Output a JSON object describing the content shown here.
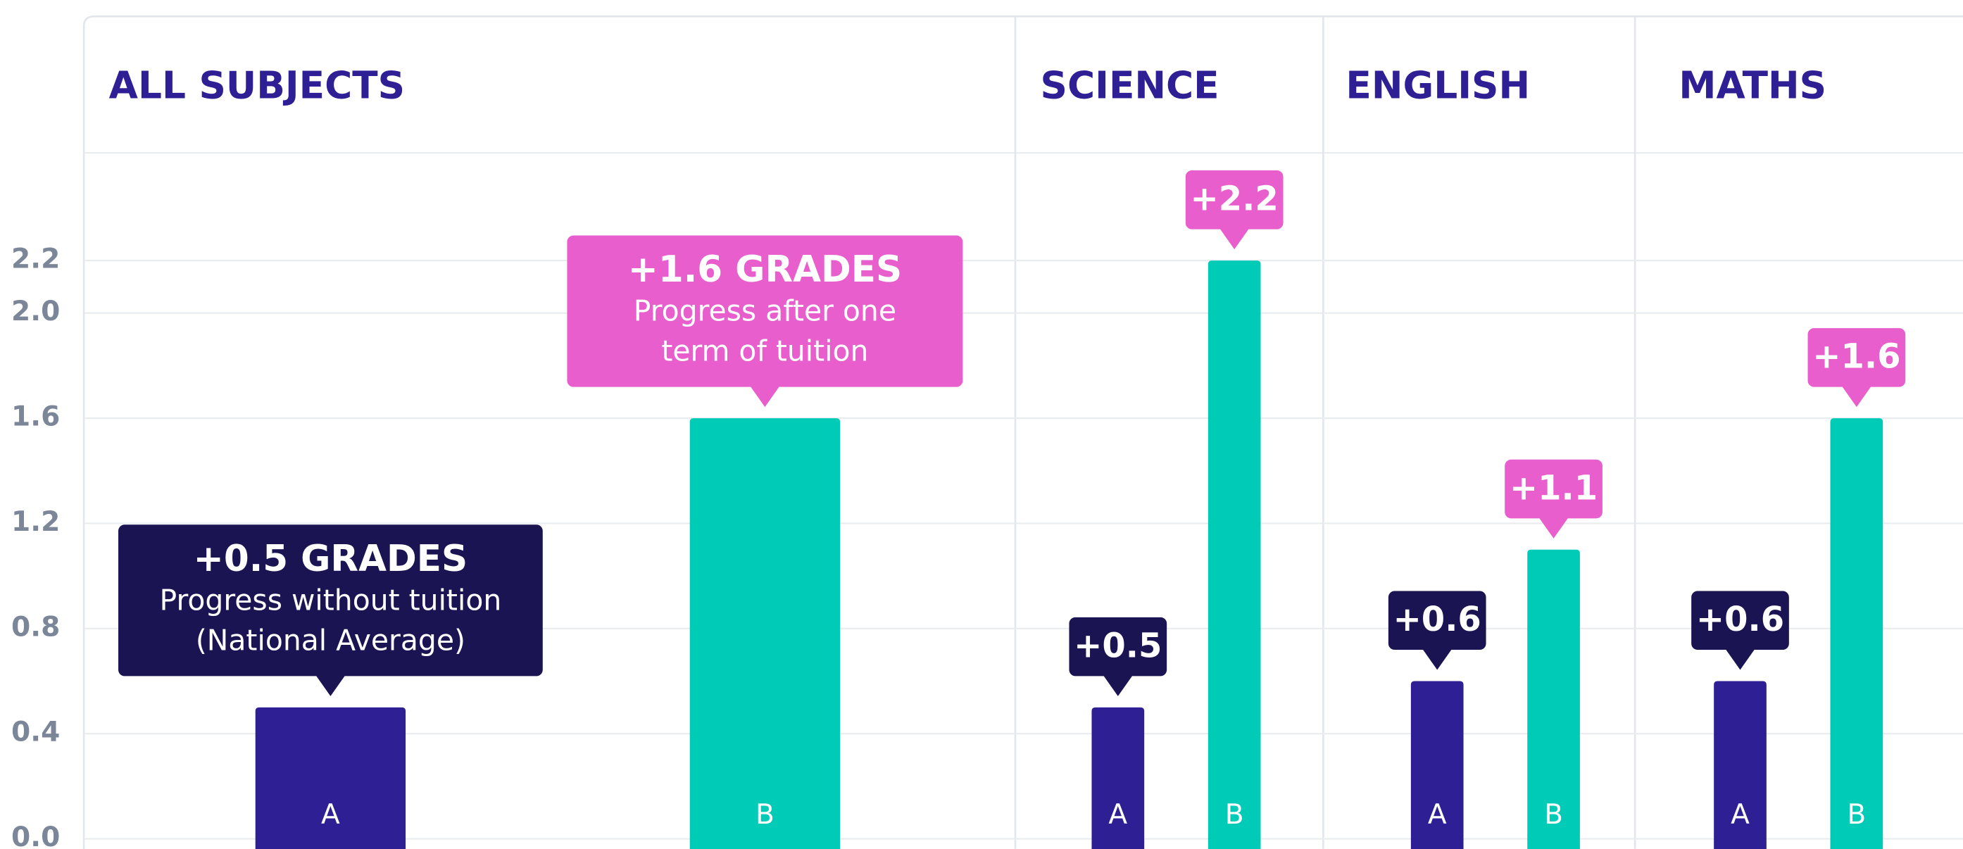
{
  "chart_data": {
    "type": "bar",
    "ylim": [
      0,
      2.6
    ],
    "yticks": [
      {
        "value": 0,
        "label": "0.0"
      },
      0.4,
      0.8,
      1.2,
      1.6,
      {
        "value": 2,
        "label": "2.0"
      },
      2.2
    ],
    "colors": [
      "#2e1f94",
      "#00cbb7"
    ],
    "label_colors": [
      "#1b1452",
      "#e85ecc"
    ],
    "panels": [
      {
        "title": "ALL SUBJECTS",
        "categories": [
          "A",
          "B"
        ],
        "values": [
          0.5,
          1.6
        ],
        "value_labels": [
          "+0.5 GRADES",
          "+1.6 GRADES"
        ],
        "notes": [
          [
            "Progress without tuition",
            "(National Average)"
          ],
          [
            "Progress after one",
            "term of tuition"
          ]
        ]
      },
      {
        "title": "SCIENCE",
        "categories": [
          "A",
          "B"
        ],
        "values": [
          0.5,
          2.2
        ],
        "value_labels": [
          "+0.5",
          "+2.2"
        ]
      },
      {
        "title": "ENGLISH",
        "categories": [
          "A",
          "B"
        ],
        "values": [
          0.6,
          1.1
        ],
        "value_labels": [
          "+0.6",
          "+1.1"
        ]
      },
      {
        "title": "MATHS",
        "categories": [
          "A",
          "B"
        ],
        "values": [
          0.6,
          1.6
        ],
        "value_labels": [
          "+0.6",
          "+1.6"
        ]
      }
    ]
  }
}
